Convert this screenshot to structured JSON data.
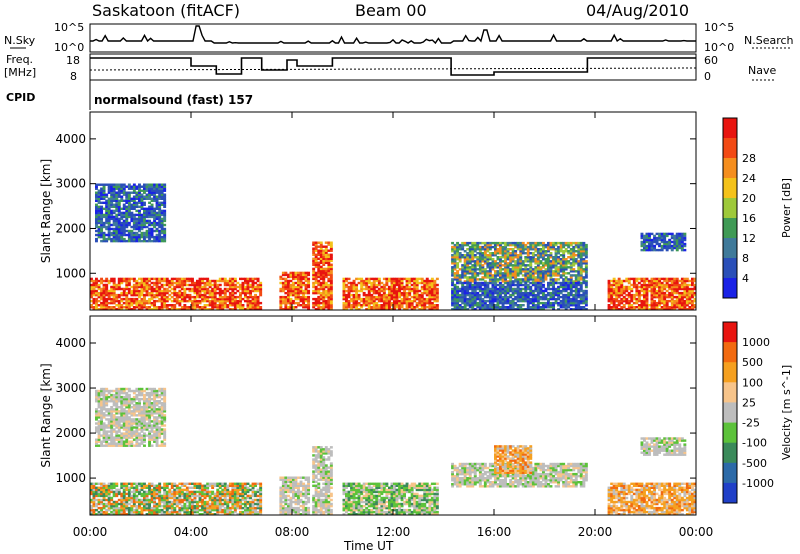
{
  "header": {
    "station": "Saskatoon (fitACF)",
    "beam": "Beam 00",
    "date": "04/Aug/2010"
  },
  "strip": {
    "nsky_label": "N.Sky",
    "nsky_ticks": [
      "10^5",
      "10^0"
    ],
    "nsearch_label": "N.Search",
    "nsearch_ticks": [
      "10^5",
      "10^0"
    ],
    "freq_label_1": "Freq.",
    "freq_label_2": "[MHz]",
    "freq_ticks": [
      "18",
      "8"
    ],
    "nave_label": "Nave",
    "nave_ticks": [
      "60",
      "0"
    ],
    "cpid_label": "CPID",
    "cpid_text": "normalsound (fast) 157"
  },
  "chart_data": [
    {
      "type": "heatmap",
      "name": "power",
      "ylabel": "Slant Range [km]",
      "yticks": [
        "1000",
        "2000",
        "3000",
        "4000"
      ],
      "ylim": [
        180,
        4600
      ],
      "xlim": [
        0,
        24
      ],
      "colorbar": {
        "label": "Power [dB]",
        "ticks": [
          "4",
          "8",
          "12",
          "16",
          "20",
          "24",
          "28"
        ],
        "colors": [
          "#1a22e6",
          "#2a4fb8",
          "#3f7a9a",
          "#3f9a55",
          "#9ec93a",
          "#f4c21a",
          "#f58e1e",
          "#f24a14",
          "#e8140f"
        ]
      },
      "blocks": [
        {
          "t0": 0.0,
          "t1": 6.8,
          "r0": 180,
          "r1": 900,
          "level": "high"
        },
        {
          "t0": 0.2,
          "t1": 3.0,
          "r0": 1700,
          "r1": 3000,
          "level": "low"
        },
        {
          "t0": 7.5,
          "t1": 8.7,
          "r0": 180,
          "r1": 1000,
          "level": "high"
        },
        {
          "t0": 8.8,
          "t1": 9.6,
          "r0": 180,
          "r1": 1700,
          "level": "high"
        },
        {
          "t0": 10.0,
          "t1": 13.8,
          "r0": 180,
          "r1": 900,
          "level": "high"
        },
        {
          "t0": 14.3,
          "t1": 19.7,
          "r0": 800,
          "r1": 1700,
          "level": "mid"
        },
        {
          "t0": 14.3,
          "t1": 19.7,
          "r0": 180,
          "r1": 800,
          "level": "low"
        },
        {
          "t0": 20.5,
          "t1": 24.0,
          "r0": 180,
          "r1": 900,
          "level": "high"
        },
        {
          "t0": 21.8,
          "t1": 23.6,
          "r0": 1500,
          "r1": 1900,
          "level": "low"
        }
      ]
    },
    {
      "type": "heatmap",
      "name": "velocity",
      "ylabel": "Slant Range [km]",
      "yticks": [
        "1000",
        "2000",
        "3000",
        "4000"
      ],
      "ylim": [
        180,
        4600
      ],
      "xlim": [
        0,
        24
      ],
      "xlabel": "Time UT",
      "xticks": [
        "00:00",
        "04:00",
        "08:00",
        "12:00",
        "16:00",
        "20:00",
        "00:00"
      ],
      "colorbar": {
        "label": "Velocity [m s^-1]",
        "ticks": [
          "1000",
          "500",
          "100",
          "25",
          "-25",
          "-100",
          "-500",
          "-1000"
        ],
        "colors": [
          "#2040c8",
          "#2c6aa8",
          "#3a8a5a",
          "#5cc23a",
          "#bdbdbd",
          "#f7c48a",
          "#f5a020",
          "#f26a10",
          "#e8140f"
        ]
      },
      "blocks": [
        {
          "t0": 0.0,
          "t1": 6.8,
          "r0": 180,
          "r1": 900,
          "level": "mixed"
        },
        {
          "t0": 0.2,
          "t1": 3.0,
          "r0": 1700,
          "r1": 3000,
          "level": "gray"
        },
        {
          "t0": 7.5,
          "t1": 8.7,
          "r0": 180,
          "r1": 1000,
          "level": "gray"
        },
        {
          "t0": 8.8,
          "t1": 9.6,
          "r0": 180,
          "r1": 1700,
          "level": "gray"
        },
        {
          "t0": 10.0,
          "t1": 13.8,
          "r0": 180,
          "r1": 900,
          "level": "green"
        },
        {
          "t0": 14.3,
          "t1": 19.7,
          "r0": 800,
          "r1": 1300,
          "level": "gray"
        },
        {
          "t0": 16.0,
          "t1": 17.5,
          "r0": 1100,
          "r1": 1700,
          "level": "orange"
        },
        {
          "t0": 20.5,
          "t1": 24.0,
          "r0": 180,
          "r1": 900,
          "level": "orange"
        },
        {
          "t0": 21.8,
          "t1": 23.6,
          "r0": 1500,
          "r1": 1900,
          "level": "gray"
        }
      ]
    }
  ]
}
